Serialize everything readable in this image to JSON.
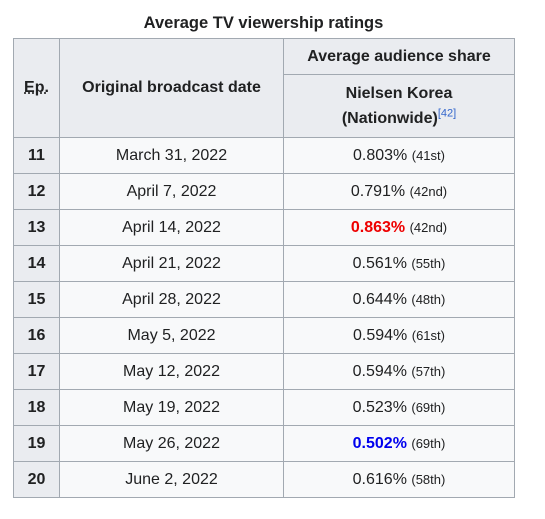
{
  "caption": "Average TV viewership ratings",
  "headers": {
    "ep": "Ep.",
    "date": "Original broadcast date",
    "share": "Average audience share",
    "nielsen_line1": "Nielsen Korea",
    "nielsen_line2": "(Nationwide)",
    "ref": "[42]"
  },
  "rows": [
    {
      "ep": "11",
      "date": "March 31, 2022",
      "value": "0.803%",
      "rank": "(41st)",
      "style": ""
    },
    {
      "ep": "12",
      "date": "April 7, 2022",
      "value": "0.791%",
      "rank": "(42nd)",
      "style": ""
    },
    {
      "ep": "13",
      "date": "April 14, 2022",
      "value": "0.863%",
      "rank": "(42nd)",
      "style": "hi"
    },
    {
      "ep": "14",
      "date": "April 21, 2022",
      "value": "0.561%",
      "rank": "(55th)",
      "style": ""
    },
    {
      "ep": "15",
      "date": "April 28, 2022",
      "value": "0.644%",
      "rank": "(48th)",
      "style": ""
    },
    {
      "ep": "16",
      "date": "May 5, 2022",
      "value": "0.594%",
      "rank": "(61st)",
      "style": ""
    },
    {
      "ep": "17",
      "date": "May 12, 2022",
      "value": "0.594%",
      "rank": "(57th)",
      "style": ""
    },
    {
      "ep": "18",
      "date": "May 19, 2022",
      "value": "0.523%",
      "rank": "(69th)",
      "style": ""
    },
    {
      "ep": "19",
      "date": "May 26, 2022",
      "value": "0.502%",
      "rank": "(69th)",
      "style": "lo"
    },
    {
      "ep": "20",
      "date": "June 2, 2022",
      "value": "0.616%",
      "rank": "(58th)",
      "style": ""
    }
  ],
  "colors": {
    "highest": "#ee0000",
    "lowest": "#0000ee",
    "header_bg": "#eaecf0",
    "cell_bg": "#f8f9fa",
    "border": "#a2a9b1"
  }
}
